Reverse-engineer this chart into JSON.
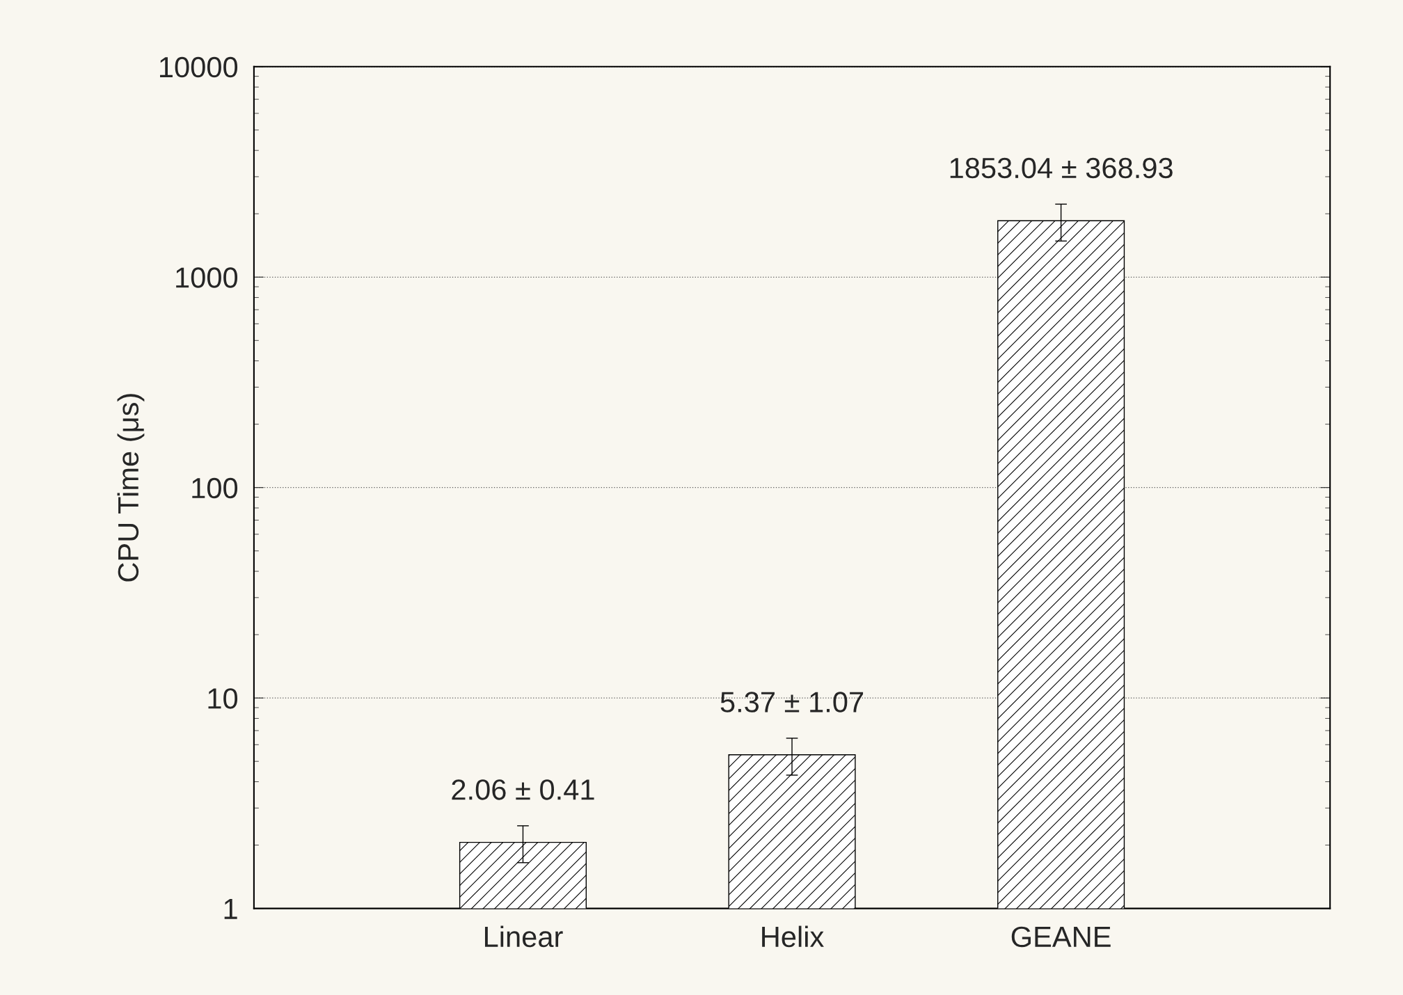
{
  "chart_data": {
    "type": "bar",
    "ylabel": "CPU Time (μs)",
    "categories": [
      "Linear",
      "Helix",
      "GEANE"
    ],
    "values": [
      2.06,
      5.37,
      1853.04
    ],
    "errors": [
      0.41,
      1.07,
      368.93
    ],
    "value_labels": [
      "2.06 ± 0.41",
      "5.37 ± 1.07",
      "1853.04 ± 368.93"
    ],
    "color": "#000000",
    "log": "y",
    "ylim": [
      1,
      10000
    ],
    "yticks": [
      1,
      10,
      100,
      1000,
      10000
    ],
    "grid": "y"
  }
}
